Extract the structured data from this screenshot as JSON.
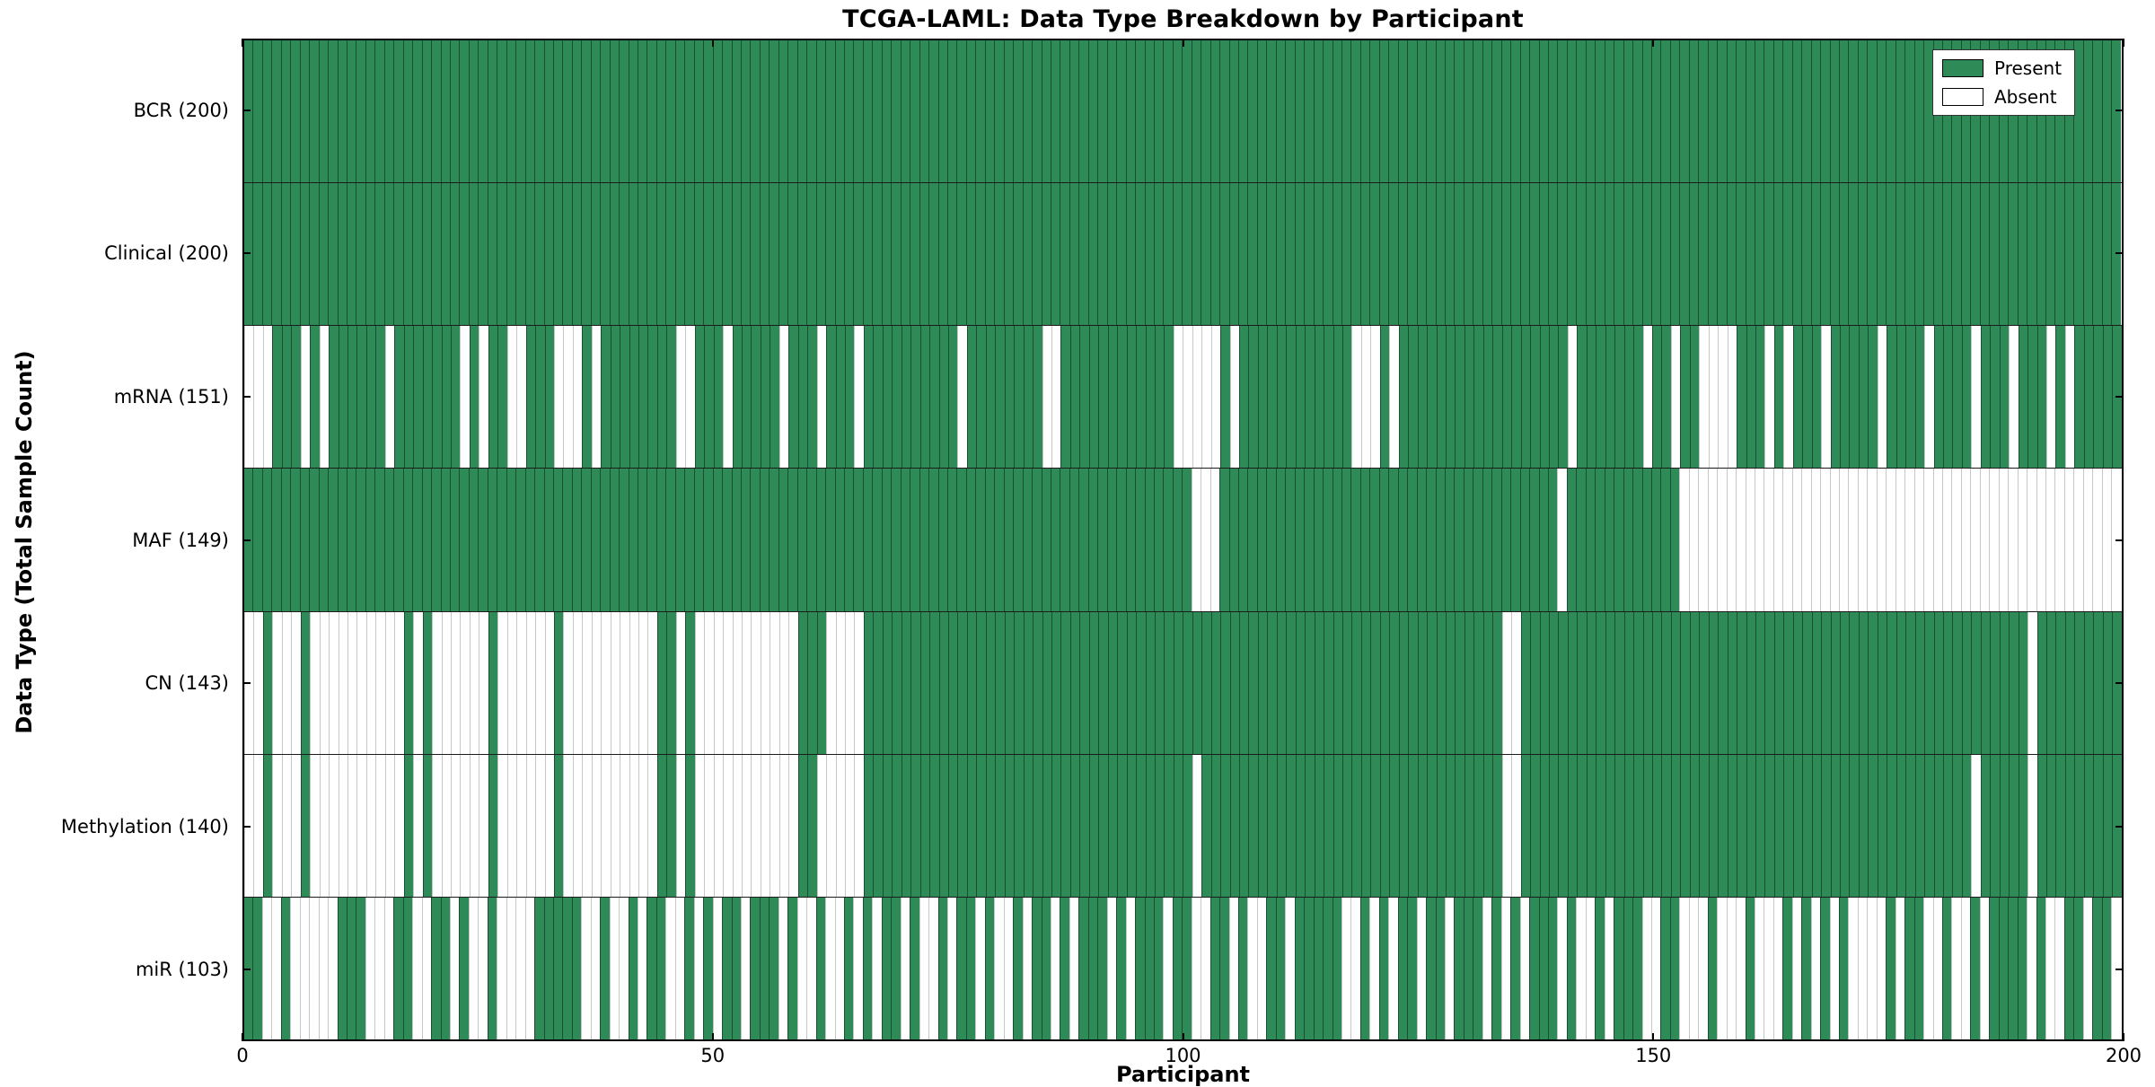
{
  "title": "TCGA-LAML: Data Type Breakdown by Participant",
  "x_axis": {
    "label": "Participant",
    "ticks": [
      0,
      50,
      100,
      150,
      200
    ],
    "range": [
      0,
      200
    ]
  },
  "y_axis": {
    "label": "Data Type (Total Sample Count)"
  },
  "legend": {
    "present_label": "Present",
    "absent_label": "Absent"
  },
  "colors": {
    "present": "#2e8b57",
    "absent": "#ffffff",
    "edge": "#000000"
  },
  "chart_data": {
    "type": "heatmap",
    "n_participants": 200,
    "value_encoding": "green = data type present for participant, white = absent",
    "legend_position": "top-right",
    "rows": [
      {
        "name": "BCR",
        "label": "BCR (200)",
        "count": 200,
        "absent_ranges": ""
      },
      {
        "name": "Clinical",
        "label": "Clinical (200)",
        "count": 200,
        "absent_ranges": ""
      },
      {
        "name": "mRNA",
        "label": "mRNA (151)",
        "count": 151,
        "absent_ranges": "0-2,6,8,15,23,25,28-29,33-35,37,46-47,51,57,61,65,76,85-86,99-103,105,118-120,122,141,149,152,155-158,162,164,168,174,179,184,188,192,194"
      },
      {
        "name": "MAF",
        "label": "MAF (149)",
        "count": 149,
        "absent_ranges": "101-103,140,153-199"
      },
      {
        "name": "CN",
        "label": "CN (143)",
        "count": 143,
        "absent_ranges": "0-1,3-5,7-16,18,20-25,27-32,34-43,46,48-58,62-65,134-135,190"
      },
      {
        "name": "Methylation",
        "label": "Methylation (140)",
        "count": 140,
        "absent_ranges": "0-1,3-5,7-16,18,20-25,27-32,34-43,46,48-58,61-65,101,134-135,184,190"
      },
      {
        "name": "miR",
        "label": "miR (103)",
        "count": 103,
        "absent_ranges": "2-3,5-9,13-15,18-19,22,24-25,27-30,36-37,39-40,42,45-46,48,50,53,57,59-60,62-63,65,67,70,72-73,75,78,80-81,83,86,88,92,94,98,101-102,105,107-108,111,117-118,120,122,125,128,132,134,136,140,142-143,145,149-150,153-155,157-159,161-163,165,167,169,171-174,176,179-180,182-183,185,190,192-193,196,199"
      }
    ]
  }
}
